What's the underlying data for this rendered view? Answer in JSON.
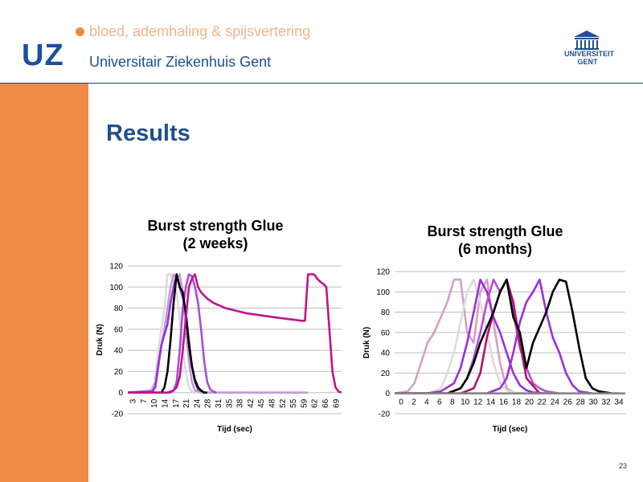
{
  "header": {
    "logo": "UZ",
    "department": "bloed, ademhaling & spijsvertering",
    "hospital": "Universitair Ziekenhuis Gent",
    "university": "UNIVERSITEIT GENT"
  },
  "slide": {
    "title": "Results",
    "number": "23"
  },
  "colors": {
    "accent_orange": "#f08a47",
    "brand_blue": "#1f4f8f"
  },
  "chart_data": [
    {
      "type": "line",
      "title_line1": "Burst strength Glue",
      "title_line2": "(2 weeks)",
      "xlabel": "Tijd (sec)",
      "ylabel": "Druk (N)",
      "ylim": [
        -20,
        120
      ],
      "yticks": [
        -20,
        0,
        20,
        40,
        60,
        80,
        100,
        120
      ],
      "xlim": [
        1,
        71
      ],
      "xtick_labels": [
        "3",
        "7",
        "10",
        "14",
        "17",
        "21",
        "24",
        "28",
        "31",
        "35",
        "38",
        "42",
        "45",
        "48",
        "52",
        "55",
        "59",
        "62",
        "66",
        "69"
      ],
      "grid": true,
      "series": [
        {
          "color": "#dcdcdc",
          "x": [
            1,
            8,
            10,
            11,
            13,
            14,
            15,
            16,
            17,
            18,
            19,
            20,
            21,
            22,
            23,
            40
          ],
          "y": [
            0,
            1,
            10,
            40,
            80,
            112,
            112,
            105,
            95,
            70,
            40,
            20,
            5,
            1,
            0,
            0
          ]
        },
        {
          "color": "#c49bd6",
          "x": [
            1,
            9,
            10,
            11,
            12,
            13,
            14,
            15,
            16,
            17,
            18,
            19,
            20,
            21,
            22,
            23,
            26,
            60
          ],
          "y": [
            0,
            2,
            10,
            30,
            45,
            60,
            80,
            100,
            112,
            108,
            112,
            95,
            60,
            30,
            10,
            2,
            0,
            0
          ]
        },
        {
          "color": "#9b30d9",
          "x": [
            1,
            9,
            10,
            11,
            12,
            13,
            14,
            15,
            16,
            17,
            18,
            19,
            20,
            21,
            22,
            23,
            24,
            26
          ],
          "y": [
            0,
            1,
            5,
            25,
            45,
            55,
            65,
            85,
            100,
            112,
            100,
            90,
            75,
            50,
            25,
            10,
            3,
            0
          ]
        },
        {
          "color": "#a64ecf",
          "x": [
            1,
            15,
            16,
            17,
            18,
            19,
            20,
            21,
            22,
            23,
            24,
            25,
            26,
            27,
            28,
            29,
            30
          ],
          "y": [
            0,
            0,
            2,
            10,
            40,
            80,
            100,
            112,
            110,
            100,
            85,
            60,
            30,
            10,
            3,
            1,
            0
          ]
        },
        {
          "color": "#000000",
          "x": [
            1,
            12,
            13,
            14,
            15,
            16,
            17,
            18,
            19,
            20,
            21,
            22,
            23,
            24,
            25,
            26,
            27
          ],
          "y": [
            0,
            0,
            5,
            20,
            50,
            85,
            112,
            100,
            95,
            75,
            45,
            25,
            12,
            5,
            2,
            0,
            0
          ]
        },
        {
          "color": "#c0148c",
          "x": [
            1,
            14,
            15,
            16,
            17,
            18,
            19,
            20,
            21,
            22,
            23,
            24,
            25,
            26,
            27,
            29,
            33,
            40,
            50,
            58,
            59,
            60,
            61,
            62,
            63,
            64,
            65,
            66,
            67,
            68,
            69,
            70,
            71
          ],
          "y": [
            0,
            0,
            1,
            2,
            5,
            15,
            40,
            70,
            100,
            108,
            112,
            100,
            95,
            92,
            89,
            85,
            80,
            75,
            71,
            68,
            68,
            112,
            112,
            112,
            108,
            105,
            103,
            100,
            60,
            20,
            5,
            1,
            0
          ]
        }
      ]
    },
    {
      "type": "line",
      "title_line1": "Burst strength Glue",
      "title_line2": "(6 months)",
      "xlabel": "Tijd (sec)",
      "ylabel": "Druk (N)",
      "ylim": [
        -20,
        120
      ],
      "yticks": [
        -20,
        0,
        20,
        40,
        60,
        80,
        100,
        120
      ],
      "xlim": [
        0,
        35
      ],
      "xtick_labels": [
        "0",
        "2",
        "4",
        "6",
        "8",
        "10",
        "12",
        "14",
        "16",
        "18",
        "20",
        "22",
        "24",
        "26",
        "28",
        "30",
        "32",
        "34"
      ],
      "grid": true,
      "series": [
        {
          "color": "#d89fbf",
          "x": [
            0,
            2,
            3,
            4,
            5,
            6,
            7,
            8,
            9,
            10,
            11,
            12,
            13,
            14,
            15,
            16,
            17,
            18,
            19
          ],
          "y": [
            0,
            2,
            10,
            30,
            50,
            60,
            75,
            90,
            112,
            112,
            60,
            50,
            100,
            112,
            70,
            30,
            5,
            1,
            0
          ]
        },
        {
          "color": "#dcdcdc",
          "x": [
            0,
            5,
            7,
            8,
            9,
            10,
            11,
            12,
            13,
            14,
            15,
            16,
            17,
            18,
            19,
            20
          ],
          "y": [
            0,
            0,
            5,
            20,
            40,
            70,
            100,
            112,
            90,
            60,
            30,
            10,
            3,
            1,
            0,
            0
          ]
        },
        {
          "color": "#9b30d9",
          "x": [
            0,
            5,
            7,
            9,
            10,
            11,
            12,
            13,
            14,
            15,
            16,
            17,
            18,
            19,
            20,
            21,
            23
          ],
          "y": [
            0,
            0,
            2,
            10,
            25,
            50,
            80,
            112,
            100,
            75,
            60,
            40,
            20,
            8,
            3,
            1,
            0
          ]
        },
        {
          "color": "#b44fd6",
          "x": [
            0,
            8,
            10,
            11,
            12,
            13,
            14,
            15,
            16,
            17,
            18,
            19,
            20,
            21,
            22,
            23,
            24,
            25,
            26
          ],
          "y": [
            0,
            0,
            5,
            15,
            35,
            60,
            90,
            112,
            100,
            112,
            80,
            45,
            25,
            10,
            5,
            2,
            1,
            0,
            0
          ]
        },
        {
          "color": "#9b30d9",
          "x": [
            0,
            14,
            16,
            17,
            18,
            19,
            20,
            21,
            22,
            23,
            24,
            25,
            26,
            27,
            28,
            30
          ],
          "y": [
            0,
            0,
            5,
            15,
            40,
            70,
            90,
            100,
            112,
            80,
            55,
            40,
            20,
            8,
            2,
            0
          ]
        },
        {
          "color": "#b0126f",
          "x": [
            0,
            10,
            12,
            13,
            14,
            15,
            16,
            17,
            18,
            19,
            20,
            22
          ],
          "y": [
            0,
            0,
            5,
            20,
            55,
            80,
            100,
            112,
            90,
            50,
            15,
            0
          ]
        },
        {
          "color": "#000000",
          "x": [
            0,
            8,
            10,
            11,
            12,
            13,
            14,
            15,
            16,
            17,
            18,
            19,
            20,
            21,
            22,
            23,
            24,
            25,
            26,
            27,
            28,
            29,
            30,
            31,
            32,
            33,
            34
          ],
          "y": [
            0,
            0,
            5,
            15,
            30,
            50,
            65,
            80,
            100,
            112,
            75,
            60,
            25,
            50,
            65,
            80,
            100,
            112,
            110,
            80,
            45,
            15,
            5,
            2,
            1,
            0,
            0
          ]
        },
        {
          "color": "#888888",
          "x": [
            0,
            22,
            24,
            26,
            28,
            30,
            32,
            34,
            35
          ],
          "y": [
            0,
            0,
            0,
            0,
            0,
            0,
            0,
            0,
            0
          ]
        }
      ]
    }
  ]
}
